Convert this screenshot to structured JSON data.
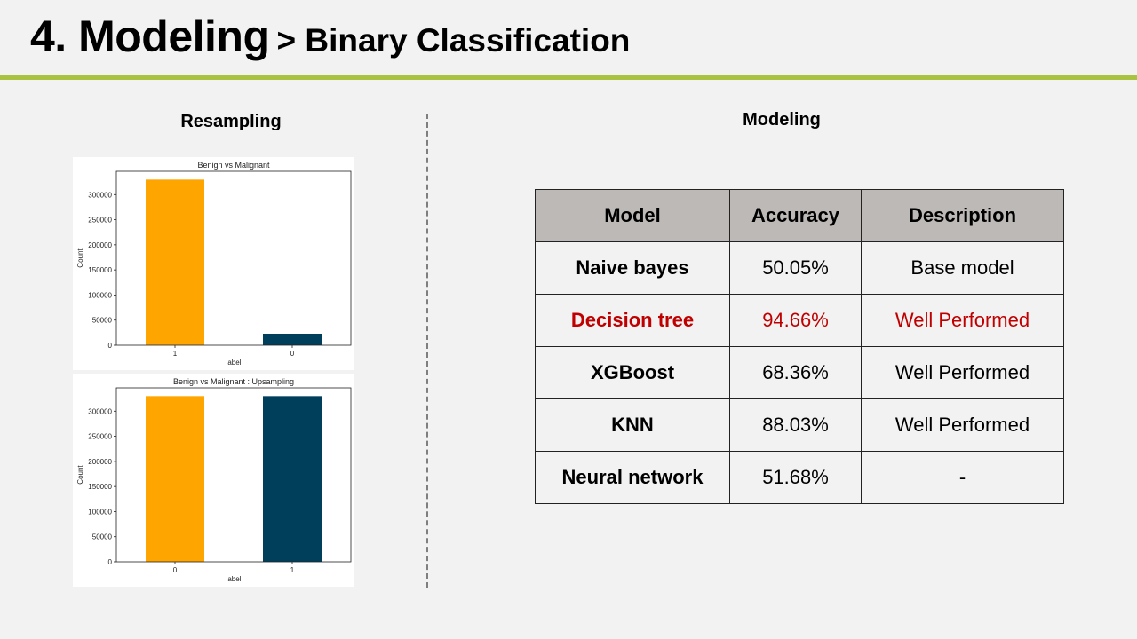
{
  "header": {
    "title": "4. Modeling",
    "subtitle": "> Binary Classification"
  },
  "left_section": {
    "heading": "Resampling"
  },
  "right_section": {
    "heading": "Modeling"
  },
  "table": {
    "columns": [
      "Model",
      "Accuracy",
      "Description"
    ],
    "rows": [
      {
        "model": "Naive bayes",
        "accuracy": "50.05%",
        "description": "Base model",
        "highlight": false
      },
      {
        "model": "Decision tree",
        "accuracy": "94.66%",
        "description": "Well Performed",
        "highlight": true
      },
      {
        "model": "XGBoost",
        "accuracy": "68.36%",
        "description": "Well Performed",
        "highlight": false
      },
      {
        "model": "KNN",
        "accuracy": "88.03%",
        "description": "Well Performed",
        "highlight": false
      },
      {
        "model": "Neural network",
        "accuracy": "51.68%",
        "description": "-",
        "highlight": false
      }
    ]
  },
  "colors": {
    "orange": "#ffa500",
    "navy": "#003f5c",
    "accent_rule": "#a9c23f",
    "highlight_text": "#c00000"
  },
  "chart_data": [
    {
      "type": "bar",
      "title": "Benign vs Malignant",
      "xlabel": "label",
      "ylabel": "Count",
      "categories": [
        "1",
        "0"
      ],
      "values": [
        330000,
        23000
      ],
      "bar_colors": [
        "#ffa500",
        "#003f5c"
      ],
      "ylim": [
        0,
        346500
      ],
      "yticks": [
        0,
        50000,
        100000,
        150000,
        200000,
        250000,
        300000
      ],
      "grid": false
    },
    {
      "type": "bar",
      "title": "Benign vs Malignant : Upsampling",
      "xlabel": "label",
      "ylabel": "Count",
      "categories": [
        "0",
        "1"
      ],
      "values": [
        330000,
        330000
      ],
      "bar_colors": [
        "#ffa500",
        "#003f5c"
      ],
      "ylim": [
        0,
        346500
      ],
      "yticks": [
        0,
        50000,
        100000,
        150000,
        200000,
        250000,
        300000
      ],
      "grid": false
    }
  ]
}
